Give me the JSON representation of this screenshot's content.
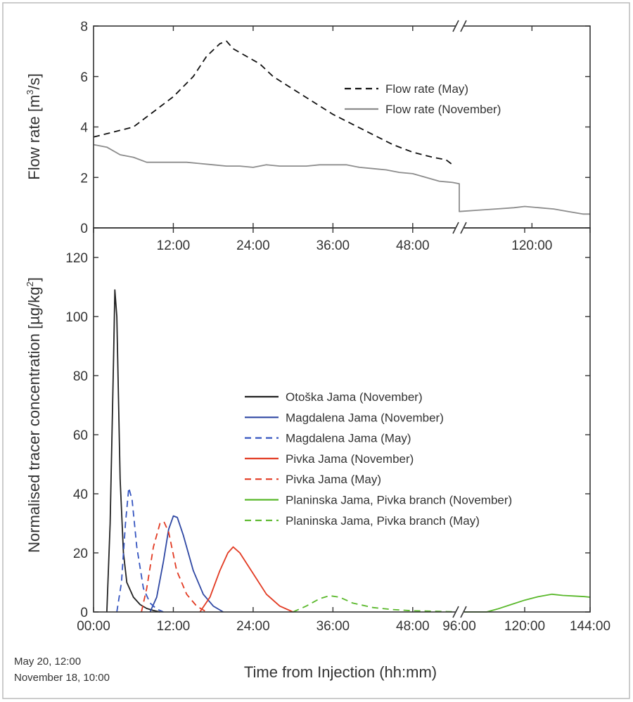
{
  "chart_data": [
    {
      "panel": "top",
      "type": "line",
      "ylabel": "Flow rate [m³/s]",
      "ylabel_parts": {
        "main": "Flow rate [m",
        "sup": "3",
        "end": "/s]"
      },
      "ylim": [
        0,
        8
      ],
      "yticks": [
        "0",
        "2",
        "4",
        "6",
        "8"
      ],
      "x_axis": "broken",
      "x_segments": [
        {
          "range_h": [
            0,
            55
          ],
          "ticks": [
            {
              "h": 12,
              "label": "12:00"
            },
            {
              "h": 24,
              "label": "24:00"
            },
            {
              "h": 36,
              "label": "36:00"
            },
            {
              "h": 48,
              "label": "48:00"
            }
          ]
        },
        {
          "range_h": [
            100,
            136
          ],
          "ticks": [
            {
              "h": 120,
              "label": "120:00"
            }
          ]
        }
      ],
      "legend_position": "top-right",
      "series": [
        {
          "name": "Flow rate (May)",
          "style": "dashed",
          "color": "#111111",
          "points": [
            [
              0,
              3.6
            ],
            [
              3,
              3.8
            ],
            [
              6,
              4.0
            ],
            [
              9,
              4.6
            ],
            [
              12,
              5.2
            ],
            [
              15,
              6.0
            ],
            [
              17,
              6.8
            ],
            [
              19,
              7.3
            ],
            [
              20,
              7.4
            ],
            [
              21,
              7.1
            ],
            [
              23,
              6.8
            ],
            [
              25,
              6.5
            ],
            [
              27,
              6.0
            ],
            [
              30,
              5.5
            ],
            [
              33,
              5.0
            ],
            [
              36,
              4.5
            ],
            [
              39,
              4.1
            ],
            [
              42,
              3.7
            ],
            [
              45,
              3.3
            ],
            [
              48,
              3.0
            ],
            [
              51,
              2.8
            ],
            [
              53,
              2.7
            ],
            [
              54,
              2.5
            ]
          ]
        },
        {
          "name": "Flow rate (November)",
          "style": "solid",
          "color": "#8c8c8c",
          "points": [
            [
              0,
              3.3
            ],
            [
              2,
              3.2
            ],
            [
              4,
              2.9
            ],
            [
              6,
              2.8
            ],
            [
              8,
              2.6
            ],
            [
              10,
              2.6
            ],
            [
              12,
              2.6
            ],
            [
              14,
              2.6
            ],
            [
              16,
              2.55
            ],
            [
              18,
              2.5
            ],
            [
              20,
              2.45
            ],
            [
              22,
              2.45
            ],
            [
              24,
              2.4
            ],
            [
              26,
              2.5
            ],
            [
              28,
              2.45
            ],
            [
              30,
              2.45
            ],
            [
              32,
              2.45
            ],
            [
              34,
              2.5
            ],
            [
              36,
              2.5
            ],
            [
              38,
              2.5
            ],
            [
              40,
              2.4
            ],
            [
              42,
              2.35
            ],
            [
              44,
              2.3
            ],
            [
              46,
              2.2
            ],
            [
              48,
              2.15
            ],
            [
              50,
              2.0
            ],
            [
              52,
              1.85
            ],
            [
              54,
              1.8
            ],
            [
              55,
              1.75
            ],
            [
              100,
              0.65
            ],
            [
              105,
              0.7
            ],
            [
              110,
              0.75
            ],
            [
              115,
              0.8
            ],
            [
              118,
              0.85
            ],
            [
              122,
              0.8
            ],
            [
              126,
              0.75
            ],
            [
              130,
              0.65
            ],
            [
              134,
              0.55
            ],
            [
              136,
              0.55
            ]
          ]
        }
      ]
    },
    {
      "panel": "bottom",
      "type": "line",
      "xlabel": "Time from Injection (hh:mm)",
      "ylabel": "Normalised tracer concentration [µg/kg²]",
      "ylabel_parts": {
        "main": "Normalised tracer concentration [µg/kg",
        "sup": "2",
        "end": "]"
      },
      "ylim": [
        0,
        130
      ],
      "yticks": [
        "0",
        "20",
        "40",
        "60",
        "80",
        "100",
        "120"
      ],
      "x_axis": "broken",
      "x_segments": [
        {
          "range_h": [
            0,
            55
          ],
          "ticks": [
            {
              "h": 0,
              "label": "00:00"
            },
            {
              "h": 12,
              "label": "12:00"
            },
            {
              "h": 24,
              "label": "24:00"
            },
            {
              "h": 36,
              "label": "36:00"
            },
            {
              "h": 48,
              "label": "48:00"
            }
          ]
        },
        {
          "range_h": [
            96,
            144
          ],
          "ticks": [
            {
              "h": 96,
              "label": "96:00"
            },
            {
              "h": 120,
              "label": "120:00"
            },
            {
              "h": 144,
              "label": "144:00"
            }
          ]
        }
      ],
      "start_note": [
        "May 20, 12:00",
        "November 18, 10:00"
      ],
      "legend_position": "center-right",
      "series": [
        {
          "name": "Otoška Jama (November)",
          "style": "solid",
          "color": "#222222",
          "points": [
            [
              2.0,
              0
            ],
            [
              2.5,
              30
            ],
            [
              3.0,
              85
            ],
            [
              3.2,
              109
            ],
            [
              3.5,
              100
            ],
            [
              4.0,
              45
            ],
            [
              4.5,
              20
            ],
            [
              5.0,
              10
            ],
            [
              6.0,
              5
            ],
            [
              7.0,
              2.5
            ],
            [
              8.0,
              1.2
            ],
            [
              9.0,
              0.5
            ],
            [
              10.0,
              0
            ]
          ]
        },
        {
          "name": "Magdalena Jama (November)",
          "style": "solid",
          "color": "#2e47a3",
          "points": [
            [
              8.5,
              0
            ],
            [
              9.5,
              5
            ],
            [
              10.5,
              17
            ],
            [
              11.3,
              28
            ],
            [
              12.0,
              32.5
            ],
            [
              12.6,
              32
            ],
            [
              13.5,
              26
            ],
            [
              15.0,
              14
            ],
            [
              16.5,
              6
            ],
            [
              18.0,
              2
            ],
            [
              19.5,
              0
            ]
          ]
        },
        {
          "name": "Magdalena Jama (May)",
          "style": "dashed",
          "color": "#3555c0",
          "points": [
            [
              3.5,
              0
            ],
            [
              4.2,
              10
            ],
            [
              4.8,
              30
            ],
            [
              5.3,
              42
            ],
            [
              5.8,
              38
            ],
            [
              6.5,
              22
            ],
            [
              7.5,
              8
            ],
            [
              8.5,
              3
            ],
            [
              9.5,
              1
            ],
            [
              10.5,
              0
            ]
          ]
        },
        {
          "name": "Pivka Jama (November)",
          "style": "solid",
          "color": "#e23a22",
          "points": [
            [
              16.0,
              0
            ],
            [
              17.5,
              5
            ],
            [
              19.0,
              14
            ],
            [
              20.2,
              20
            ],
            [
              21.0,
              22
            ],
            [
              22.0,
              20
            ],
            [
              24.0,
              13
            ],
            [
              26.0,
              6
            ],
            [
              28.0,
              2
            ],
            [
              30.0,
              0
            ]
          ]
        },
        {
          "name": "Pivka Jama (May)",
          "style": "dashed",
          "color": "#e23a22",
          "points": [
            [
              7.2,
              0
            ],
            [
              8.0,
              8
            ],
            [
              9.0,
              22
            ],
            [
              10.0,
              30
            ],
            [
              10.6,
              30.5
            ],
            [
              11.3,
              27
            ],
            [
              12.5,
              14
            ],
            [
              14.0,
              6
            ],
            [
              15.5,
              2
            ],
            [
              17.0,
              0
            ]
          ]
        },
        {
          "name": "Planinska Jama, Pivka branch (November)",
          "style": "solid",
          "color": "#59b82a",
          "points": [
            [
              96,
              0
            ],
            [
              106,
              0
            ],
            [
              110,
              1
            ],
            [
              115,
              2.5
            ],
            [
              120,
              4
            ],
            [
              125,
              5.2
            ],
            [
              130,
              6
            ],
            [
              134,
              5.6
            ],
            [
              138,
              5.4
            ],
            [
              142,
              5.2
            ],
            [
              144,
              5
            ]
          ]
        },
        {
          "name": "Planinska Jama, Pivka branch (May)",
          "style": "dashed",
          "color": "#59b82a",
          "points": [
            [
              30.0,
              0
            ],
            [
              32.0,
              2
            ],
            [
              34.0,
              4.5
            ],
            [
              35.5,
              5.5
            ],
            [
              37.0,
              5
            ],
            [
              39.0,
              3
            ],
            [
              42.0,
              1.5
            ],
            [
              45.0,
              0.8
            ],
            [
              48.0,
              0.4
            ],
            [
              52.0,
              0.2
            ],
            [
              55.0,
              0
            ]
          ]
        }
      ]
    }
  ]
}
